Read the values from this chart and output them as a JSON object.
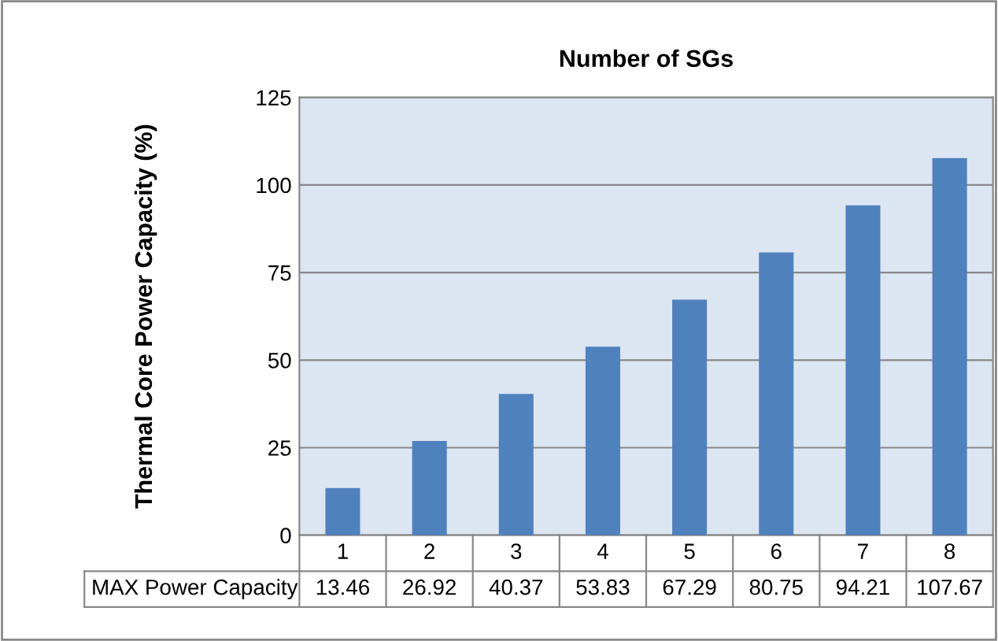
{
  "chart_data": {
    "type": "bar",
    "title": "Number of SGs",
    "ylabel": "Thermal Core Power Capacity (%)",
    "categories": [
      "1",
      "2",
      "3",
      "4",
      "5",
      "6",
      "7",
      "8"
    ],
    "series": [
      {
        "name": "MAX Power Capacity",
        "color": "#4f81bd",
        "values": [
          13.46,
          26.92,
          40.37,
          53.83,
          67.29,
          80.75,
          94.21,
          107.67
        ]
      }
    ],
    "ylim": [
      0,
      125
    ],
    "yticks": [
      0,
      25,
      50,
      75,
      100,
      125
    ],
    "grid": "y",
    "data_labels": true
  }
}
